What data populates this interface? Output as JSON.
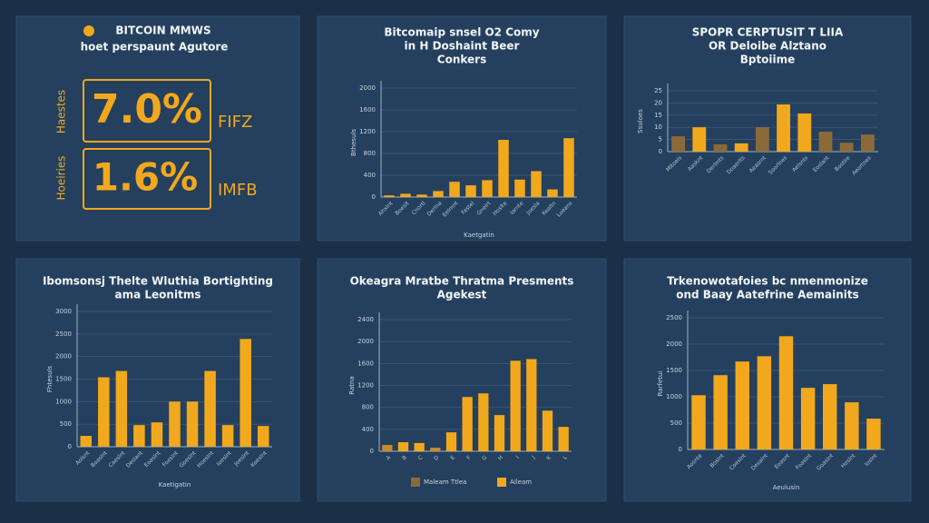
{
  "kpi_panel": {
    "title": "BITCOIN MMWS",
    "subtitle": "hoet perspaunt Agutore",
    "items": [
      {
        "value": "7.0%",
        "side": "Haestes",
        "tag": "FIFZ"
      },
      {
        "value": "1.6%",
        "side": "Hoeiries",
        "tag": "IMFB"
      }
    ]
  },
  "chart_data": [
    {
      "type": "bar",
      "title": [
        "Bitcomaip snsel O2 Comy",
        "in H Doshaint Beer",
        "Conkers"
      ],
      "ylabel": "Bthesuls",
      "xlabel": "Kaetgatin",
      "categories": [
        "Ahxlnt",
        "Boeslt",
        "Cnortl",
        "Derlna",
        "Eelmnt",
        "Fastel",
        "Gnelrt",
        "Hoslte",
        "Iarnte",
        "Joesla",
        "Kealtn",
        "Loeans"
      ],
      "values": [
        30,
        60,
        45,
        110,
        280,
        215,
        310,
        1050,
        320,
        475,
        140,
        1080
      ],
      "color": "#f2a81d",
      "ylim": [
        0,
        2000
      ],
      "yticks": [
        0,
        400,
        800,
        1200,
        1600,
        2000
      ]
    },
    {
      "type": "bar",
      "title": [
        "SPOPR CERPTUSIT T LIIA",
        "OR Deloibe Alztano",
        "Bptoiime"
      ],
      "ylabel": "Ssuloes",
      "categories": [
        "Mltoels",
        "Aasknt",
        "Derlmts",
        "Doaerlts",
        "Aeasrnt",
        "Soorlnes",
        "Aelsnts",
        "Eoslant",
        "Bostlre",
        "Aeortnes"
      ],
      "values": [
        6.3,
        10,
        3,
        3.4,
        10,
        19.4,
        15.7,
        8.2,
        3.7,
        7
      ],
      "colors": [
        "#8b6a3a",
        "#f2a81d",
        "#8b6a3a",
        "#f2a81d",
        "#8b6a3a",
        "#f2a81d",
        "#f2a81d",
        "#8b6a3a",
        "#8b6a3a",
        "#8b6a3a"
      ],
      "ylim": [
        0,
        25
      ],
      "yticks": [
        0,
        5,
        10,
        15,
        20,
        25
      ]
    },
    {
      "type": "bar",
      "title": [
        "Ibomsonsj Thelte Wluthia Bortighting",
        "ama Leonitms"
      ],
      "ylabel": "Fhtesuls",
      "xlabel": "Kaetigatin",
      "categories": [
        "Aolsnt",
        "Boaslnt",
        "Caeslnt",
        "Deslant",
        "Eoaslnt",
        "Foeslnt",
        "Goeslnt",
        "Hoeslnt",
        "Ioeslnt",
        "Joeslnt",
        "Koeslnt"
      ],
      "values": [
        240,
        1540,
        1680,
        480,
        540,
        1000,
        1000,
        1680,
        480,
        2390,
        460
      ],
      "color": "#f2a81d",
      "ylim": [
        0,
        3000
      ],
      "yticks": [
        0,
        500,
        1000,
        1500,
        2000,
        2500,
        3000
      ]
    },
    {
      "type": "bar",
      "title": [
        "Okeagra Mratbe Thratma Presments",
        "Agekest"
      ],
      "ylabel": "Ratna",
      "categories": [
        "A",
        "B",
        "C",
        "D",
        "E",
        "F",
        "G",
        "H",
        "I",
        "J",
        "K",
        "L"
      ],
      "values": [
        115,
        165,
        150,
        65,
        345,
        990,
        1055,
        660,
        1650,
        1680,
        740,
        445
      ],
      "colors": [
        "#c98a2a",
        "#f2a81d",
        "#f2a81d",
        "#c98a2a",
        "#f2a81d",
        "#f2a81d",
        "#f2a81d",
        "#f2a81d",
        "#f2a81d",
        "#f2a81d",
        "#f2a81d",
        "#f2a81d"
      ],
      "ylim": [
        0,
        2400
      ],
      "yticks": [
        0,
        400,
        800,
        1200,
        1600,
        2000,
        2400
      ],
      "legend_items": [
        {
          "name": "Maleam Ttlea",
          "color": "#8b6a3a"
        },
        {
          "name": "Aileam",
          "color": "#f2a81d"
        }
      ]
    },
    {
      "type": "bar",
      "title": [
        "Trkenowotafoies bc nmenmonize",
        "ond Baay Aatefrine Aemainits"
      ],
      "ylabel": "Rarfetui",
      "xlabel": "Aeulusin",
      "categories": [
        "Aosnte",
        "Boslnt",
        "Coeslnt",
        "Desalnt",
        "Eoasnt",
        "Foaslnt",
        "Goaslnt",
        "Hoslnt",
        "Ioslnt"
      ],
      "values": [
        1030,
        1410,
        1670,
        1770,
        2150,
        1170,
        1240,
        895,
        585
      ],
      "color": "#f2a81d",
      "ylim": [
        0,
        2500
      ],
      "yticks": [
        0,
        500,
        1000,
        1500,
        2000,
        2500
      ]
    }
  ]
}
